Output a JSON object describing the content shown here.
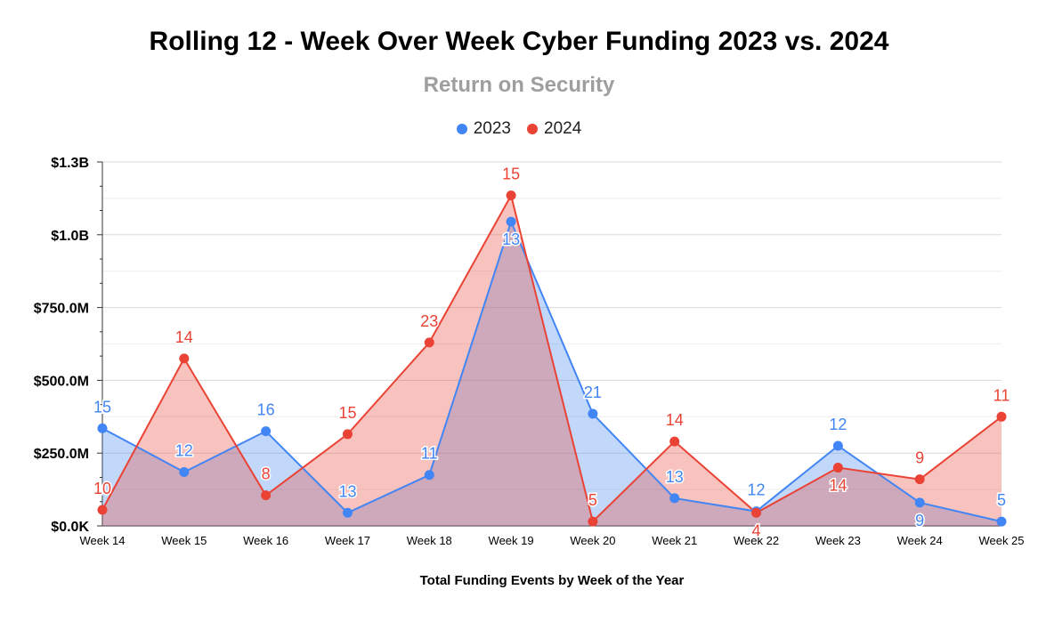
{
  "chart_data": {
    "type": "area",
    "title": "Rolling 12 - Week Over Week Cyber Funding 2023 vs. 2024",
    "subtitle": "Return on Security",
    "xlabel": "Total Funding Events by Week of the Year",
    "ylabel": "",
    "categories": [
      "Week 14",
      "Week 15",
      "Week 16",
      "Week 17",
      "Week 18",
      "Week 19",
      "Week 20",
      "Week 21",
      "Week 22",
      "Week 23",
      "Week 24",
      "Week 25"
    ],
    "ylim": [
      0,
      1250000000
    ],
    "yticks": [
      0,
      250000000,
      500000000,
      750000000,
      1000000000,
      1250000000
    ],
    "ytick_labels": [
      "$0.0K",
      "$250.0M",
      "$500.0M",
      "$750.0M",
      "$1.0B",
      "$1.3B"
    ],
    "grid": true,
    "legend_position": "top",
    "series": [
      {
        "name": "2023",
        "color": "#4285f4",
        "values": [
          335000000,
          185000000,
          325000000,
          45000000,
          175000000,
          1045000000,
          385000000,
          95000000,
          50000000,
          275000000,
          80000000,
          15000000
        ],
        "labels": [
          "15",
          "12",
          "16",
          "13",
          "11",
          "13",
          "21",
          "13",
          "12",
          "12",
          "9",
          "5"
        ]
      },
      {
        "name": "2024",
        "color": "#ea4335",
        "values": [
          55000000,
          575000000,
          105000000,
          315000000,
          630000000,
          1135000000,
          15000000,
          290000000,
          45000000,
          200000000,
          160000000,
          375000000
        ],
        "labels": [
          "10",
          "14",
          "8",
          "15",
          "23",
          "15",
          "5",
          "14",
          "4",
          "14",
          "9",
          "11"
        ]
      }
    ]
  }
}
